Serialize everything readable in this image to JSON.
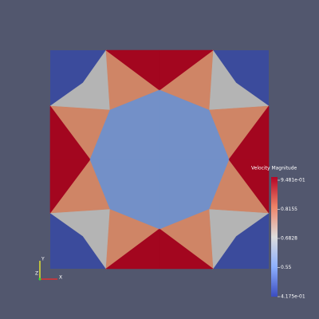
{
  "legend": {
    "title": "Velocity Magnitude",
    "labels": [
      "9.481e-01",
      "0.8155",
      "0.6828",
      "0.55",
      "4.175e-01"
    ]
  },
  "axes": {
    "x": "X",
    "y": "Y",
    "z": "Z"
  }
}
